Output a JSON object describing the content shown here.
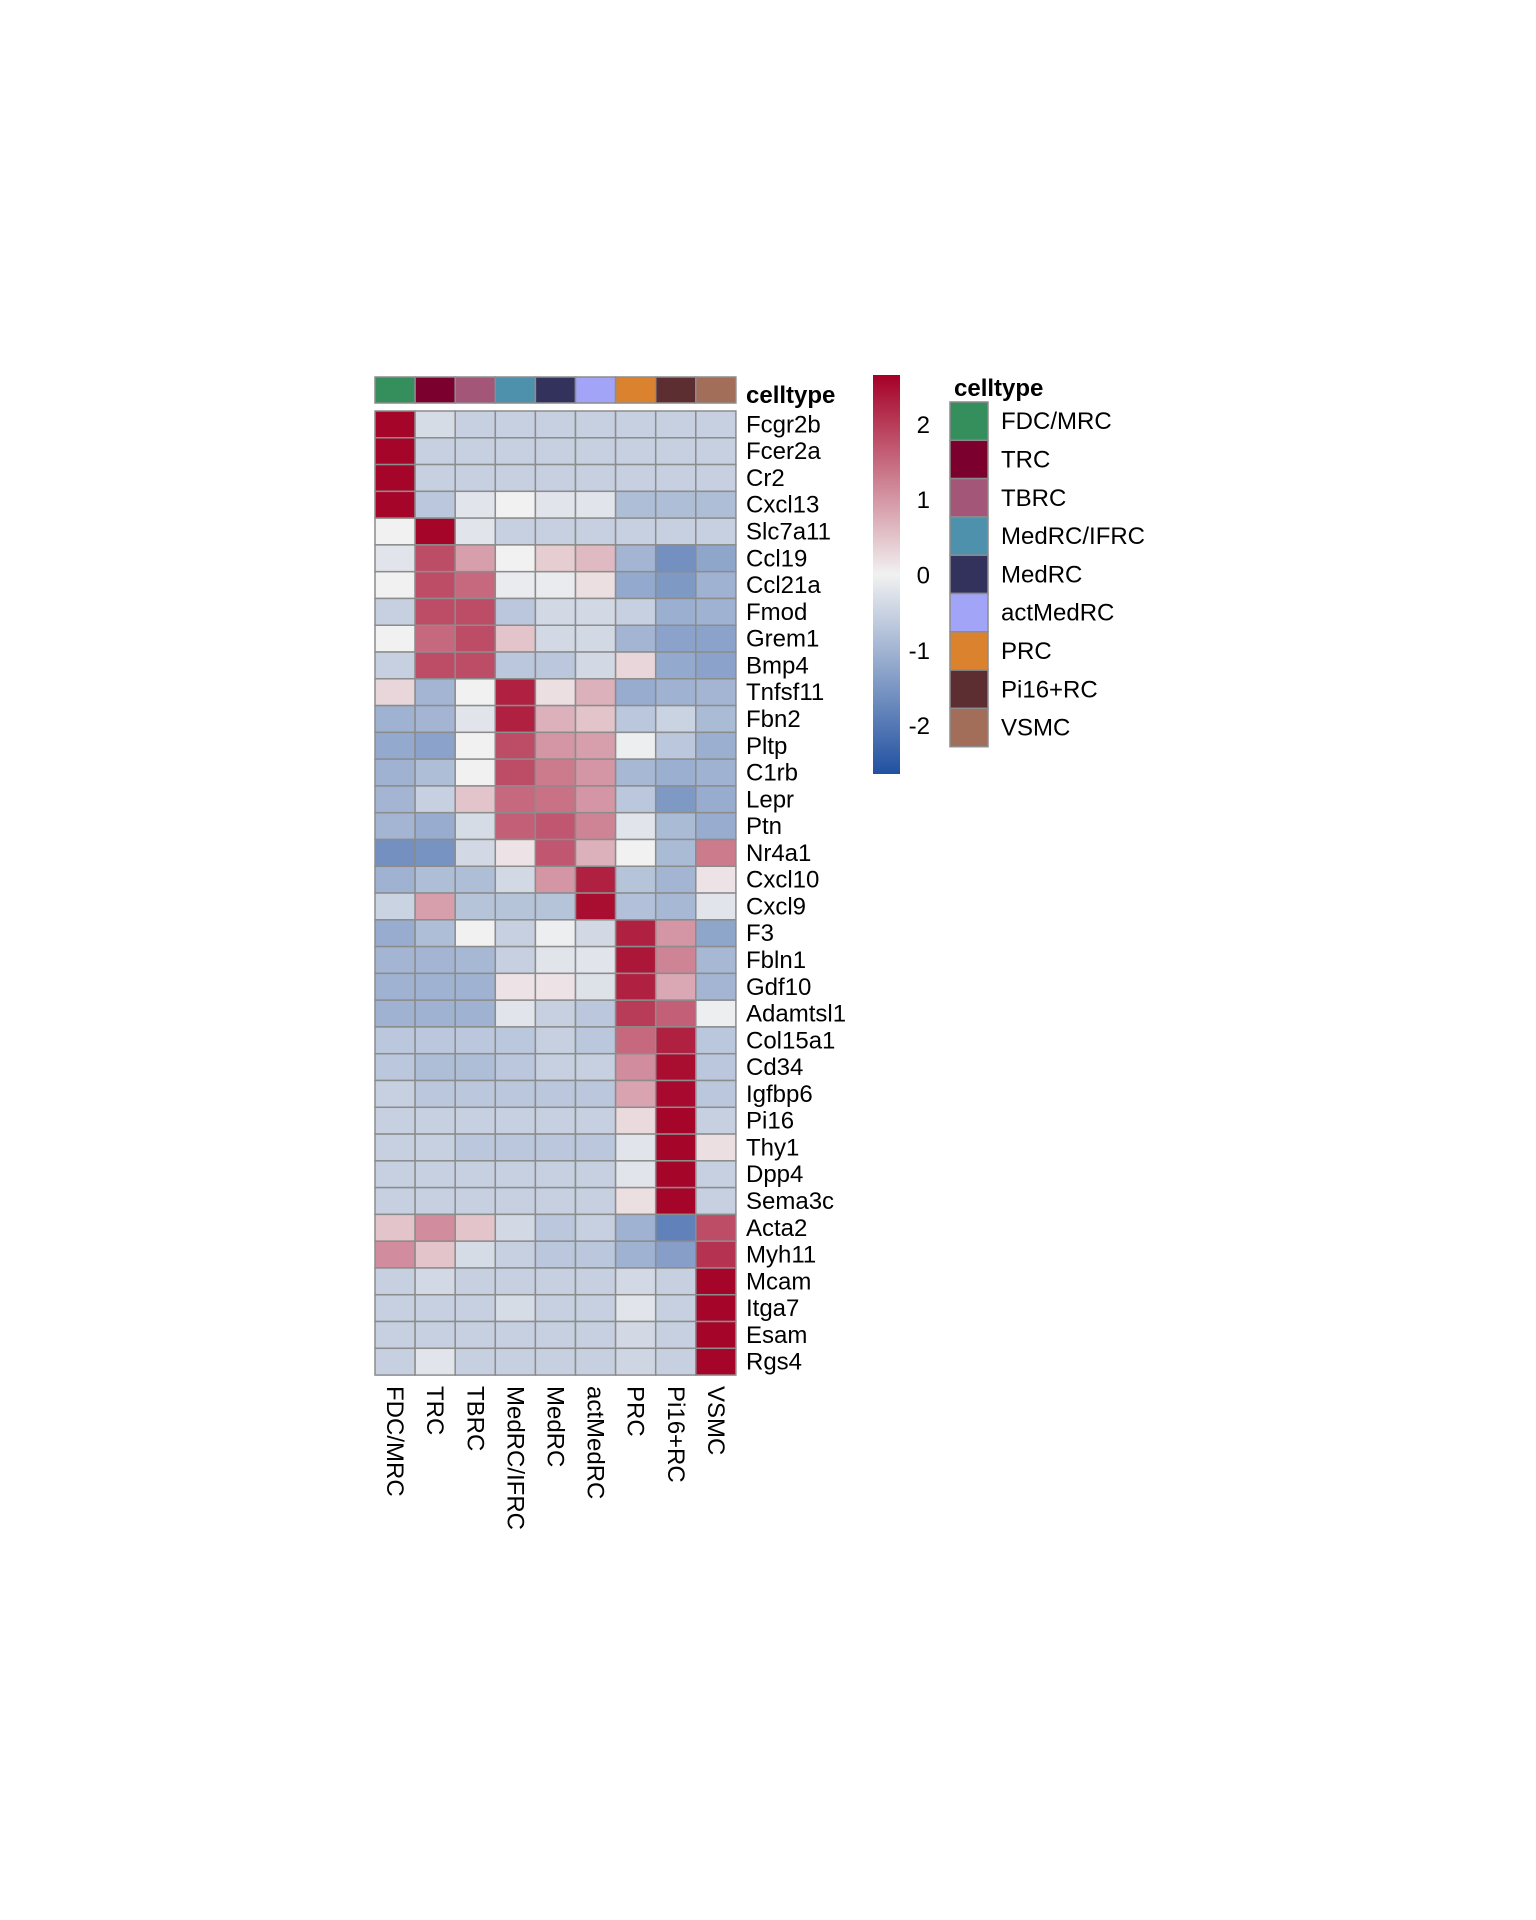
{
  "chart_data": {
    "type": "heatmap",
    "title": "",
    "annotation_title": "celltype",
    "columns": [
      "FDC/MRC",
      "TRC",
      "TBRC",
      "MedRC/IFRC",
      "MedRC",
      "actMedRC",
      "PRC",
      "Pi16+RC",
      "VSMC"
    ],
    "column_colors": [
      "#348f5d",
      "#7b002d",
      "#a35677",
      "#4e91ad",
      "#32325c",
      "#a2a4f7",
      "#db822f",
      "#5c2e31",
      "#a26e59"
    ],
    "rows": [
      "Fcgr2b",
      "Fcer2a",
      "Cr2",
      "Cxcl13",
      "Slc7a11",
      "Ccl19",
      "Ccl21a",
      "Fmod",
      "Grem1",
      "Bmp4",
      "Tnfsf11",
      "Fbn2",
      "Pltp",
      "C1rb",
      "Lepr",
      "Ptn",
      "Nr4a1",
      "Cxcl10",
      "Cxcl9",
      "F3",
      "Fbln1",
      "Gdf10",
      "Adamtsl1",
      "Col15a1",
      "Cd34",
      "Igfbp6",
      "Pi16",
      "Thy1",
      "Dpp4",
      "Sema3c",
      "Acta2",
      "Myh11",
      "Mcam",
      "Itga7",
      "Esam",
      "Rgs4"
    ],
    "values": [
      [
        2.6,
        -0.35,
        -0.55,
        -0.55,
        -0.55,
        -0.55,
        -0.55,
        -0.55,
        -0.55
      ],
      [
        2.6,
        -0.55,
        -0.55,
        -0.55,
        -0.55,
        -0.55,
        -0.55,
        -0.55,
        -0.55
      ],
      [
        2.6,
        -0.55,
        -0.55,
        -0.55,
        -0.55,
        -0.55,
        -0.55,
        -0.55,
        -0.55
      ],
      [
        2.6,
        -0.7,
        -0.2,
        0.0,
        -0.2,
        -0.2,
        -0.85,
        -0.85,
        -0.85
      ],
      [
        0.0,
        2.6,
        -0.2,
        -0.55,
        -0.55,
        -0.55,
        -0.55,
        -0.55,
        -0.55
      ],
      [
        -0.2,
        1.8,
        0.9,
        0.0,
        0.4,
        0.6,
        -1.0,
        -1.6,
        -1.25
      ],
      [
        0.0,
        1.8,
        1.5,
        -0.1,
        -0.1,
        0.2,
        -1.2,
        -1.45,
        -1.05
      ],
      [
        -0.55,
        1.8,
        1.8,
        -0.7,
        -0.4,
        -0.4,
        -0.55,
        -1.1,
        -1.05
      ],
      [
        0.0,
        1.5,
        1.8,
        0.5,
        -0.4,
        -0.4,
        -1.0,
        -1.3,
        -1.3
      ],
      [
        -0.55,
        1.8,
        1.8,
        -0.7,
        -0.7,
        -0.4,
        0.3,
        -1.2,
        -1.3
      ],
      [
        0.3,
        -1.0,
        0.0,
        2.3,
        0.2,
        0.7,
        -1.15,
        -1.05,
        -1.0
      ],
      [
        -1.05,
        -1.0,
        -0.2,
        2.3,
        0.7,
        0.5,
        -0.7,
        -0.5,
        -0.9
      ],
      [
        -1.2,
        -1.3,
        0.0,
        1.8,
        1.0,
        0.9,
        -0.05,
        -0.7,
        -1.1
      ],
      [
        -1.05,
        -0.85,
        0.0,
        1.8,
        1.3,
        1.0,
        -0.95,
        -1.1,
        -1.05
      ],
      [
        -1.0,
        -0.55,
        0.5,
        1.5,
        1.4,
        1.0,
        -0.7,
        -1.45,
        -1.15
      ],
      [
        -1.0,
        -1.15,
        -0.35,
        1.6,
        1.7,
        1.2,
        -0.2,
        -0.9,
        -1.15
      ],
      [
        -1.6,
        -1.55,
        -0.4,
        0.15,
        1.7,
        0.7,
        0.0,
        -0.9,
        1.3
      ],
      [
        -1.05,
        -0.85,
        -0.85,
        -0.4,
        1.0,
        2.3,
        -0.75,
        -1.0,
        0.15
      ],
      [
        -0.5,
        0.9,
        -0.75,
        -0.75,
        -0.75,
        2.5,
        -0.8,
        -0.95,
        -0.2
      ],
      [
        -1.15,
        -0.85,
        0.0,
        -0.55,
        -0.05,
        -0.4,
        2.3,
        1.0,
        -1.25
      ],
      [
        -1.0,
        -1.0,
        -0.95,
        -0.55,
        -0.2,
        -0.2,
        2.4,
        1.2,
        -0.95
      ],
      [
        -1.05,
        -1.05,
        -1.05,
        0.15,
        0.15,
        -0.25,
        2.3,
        0.8,
        -1.0
      ],
      [
        -1.05,
        -1.05,
        -1.05,
        -0.2,
        -0.55,
        -0.7,
        2.0,
        1.6,
        -0.05
      ],
      [
        -0.7,
        -0.7,
        -0.7,
        -0.7,
        -0.55,
        -0.7,
        1.5,
        2.3,
        -0.7
      ],
      [
        -0.7,
        -0.85,
        -0.85,
        -0.7,
        -0.55,
        -0.55,
        1.1,
        2.5,
        -0.7
      ],
      [
        -0.55,
        -0.7,
        -0.7,
        -0.7,
        -0.7,
        -0.7,
        0.85,
        2.55,
        -0.7
      ],
      [
        -0.55,
        -0.55,
        -0.55,
        -0.55,
        -0.55,
        -0.55,
        0.25,
        2.6,
        -0.55
      ],
      [
        -0.55,
        -0.55,
        -0.7,
        -0.7,
        -0.7,
        -0.7,
        -0.2,
        2.6,
        0.2
      ],
      [
        -0.55,
        -0.55,
        -0.55,
        -0.55,
        -0.55,
        -0.55,
        -0.2,
        2.6,
        -0.55
      ],
      [
        -0.55,
        -0.55,
        -0.55,
        -0.55,
        -0.55,
        -0.55,
        0.2,
        2.6,
        -0.55
      ],
      [
        0.5,
        1.1,
        0.5,
        -0.4,
        -0.7,
        -0.55,
        -1.05,
        -1.85,
        1.8
      ],
      [
        1.1,
        0.5,
        -0.35,
        -0.55,
        -0.7,
        -0.7,
        -1.05,
        -1.35,
        2.1
      ],
      [
        -0.55,
        -0.4,
        -0.55,
        -0.55,
        -0.55,
        -0.55,
        -0.4,
        -0.55,
        2.6
      ],
      [
        -0.55,
        -0.55,
        -0.55,
        -0.35,
        -0.55,
        -0.55,
        -0.2,
        -0.55,
        2.6
      ],
      [
        -0.55,
        -0.55,
        -0.55,
        -0.55,
        -0.55,
        -0.55,
        -0.4,
        -0.55,
        2.6
      ],
      [
        -0.55,
        -0.2,
        -0.55,
        -0.55,
        -0.55,
        -0.55,
        -0.45,
        -0.55,
        2.6
      ]
    ],
    "color_scale": {
      "min": -2.65,
      "max": 2.65,
      "low_color": "#2151a1",
      "mid_color": "#f1f1f1",
      "high_color": "#a50026",
      "ticks": [
        2,
        1,
        0,
        -1,
        -2
      ]
    },
    "legend": {
      "title": "celltype",
      "items": [
        "FDC/MRC",
        "TRC",
        "TBRC",
        "MedRC/IFRC",
        "MedRC",
        "actMedRC",
        "PRC",
        "Pi16+RC",
        "VSMC"
      ]
    },
    "grid": true,
    "cell_border_color": "#8c8c8c"
  }
}
